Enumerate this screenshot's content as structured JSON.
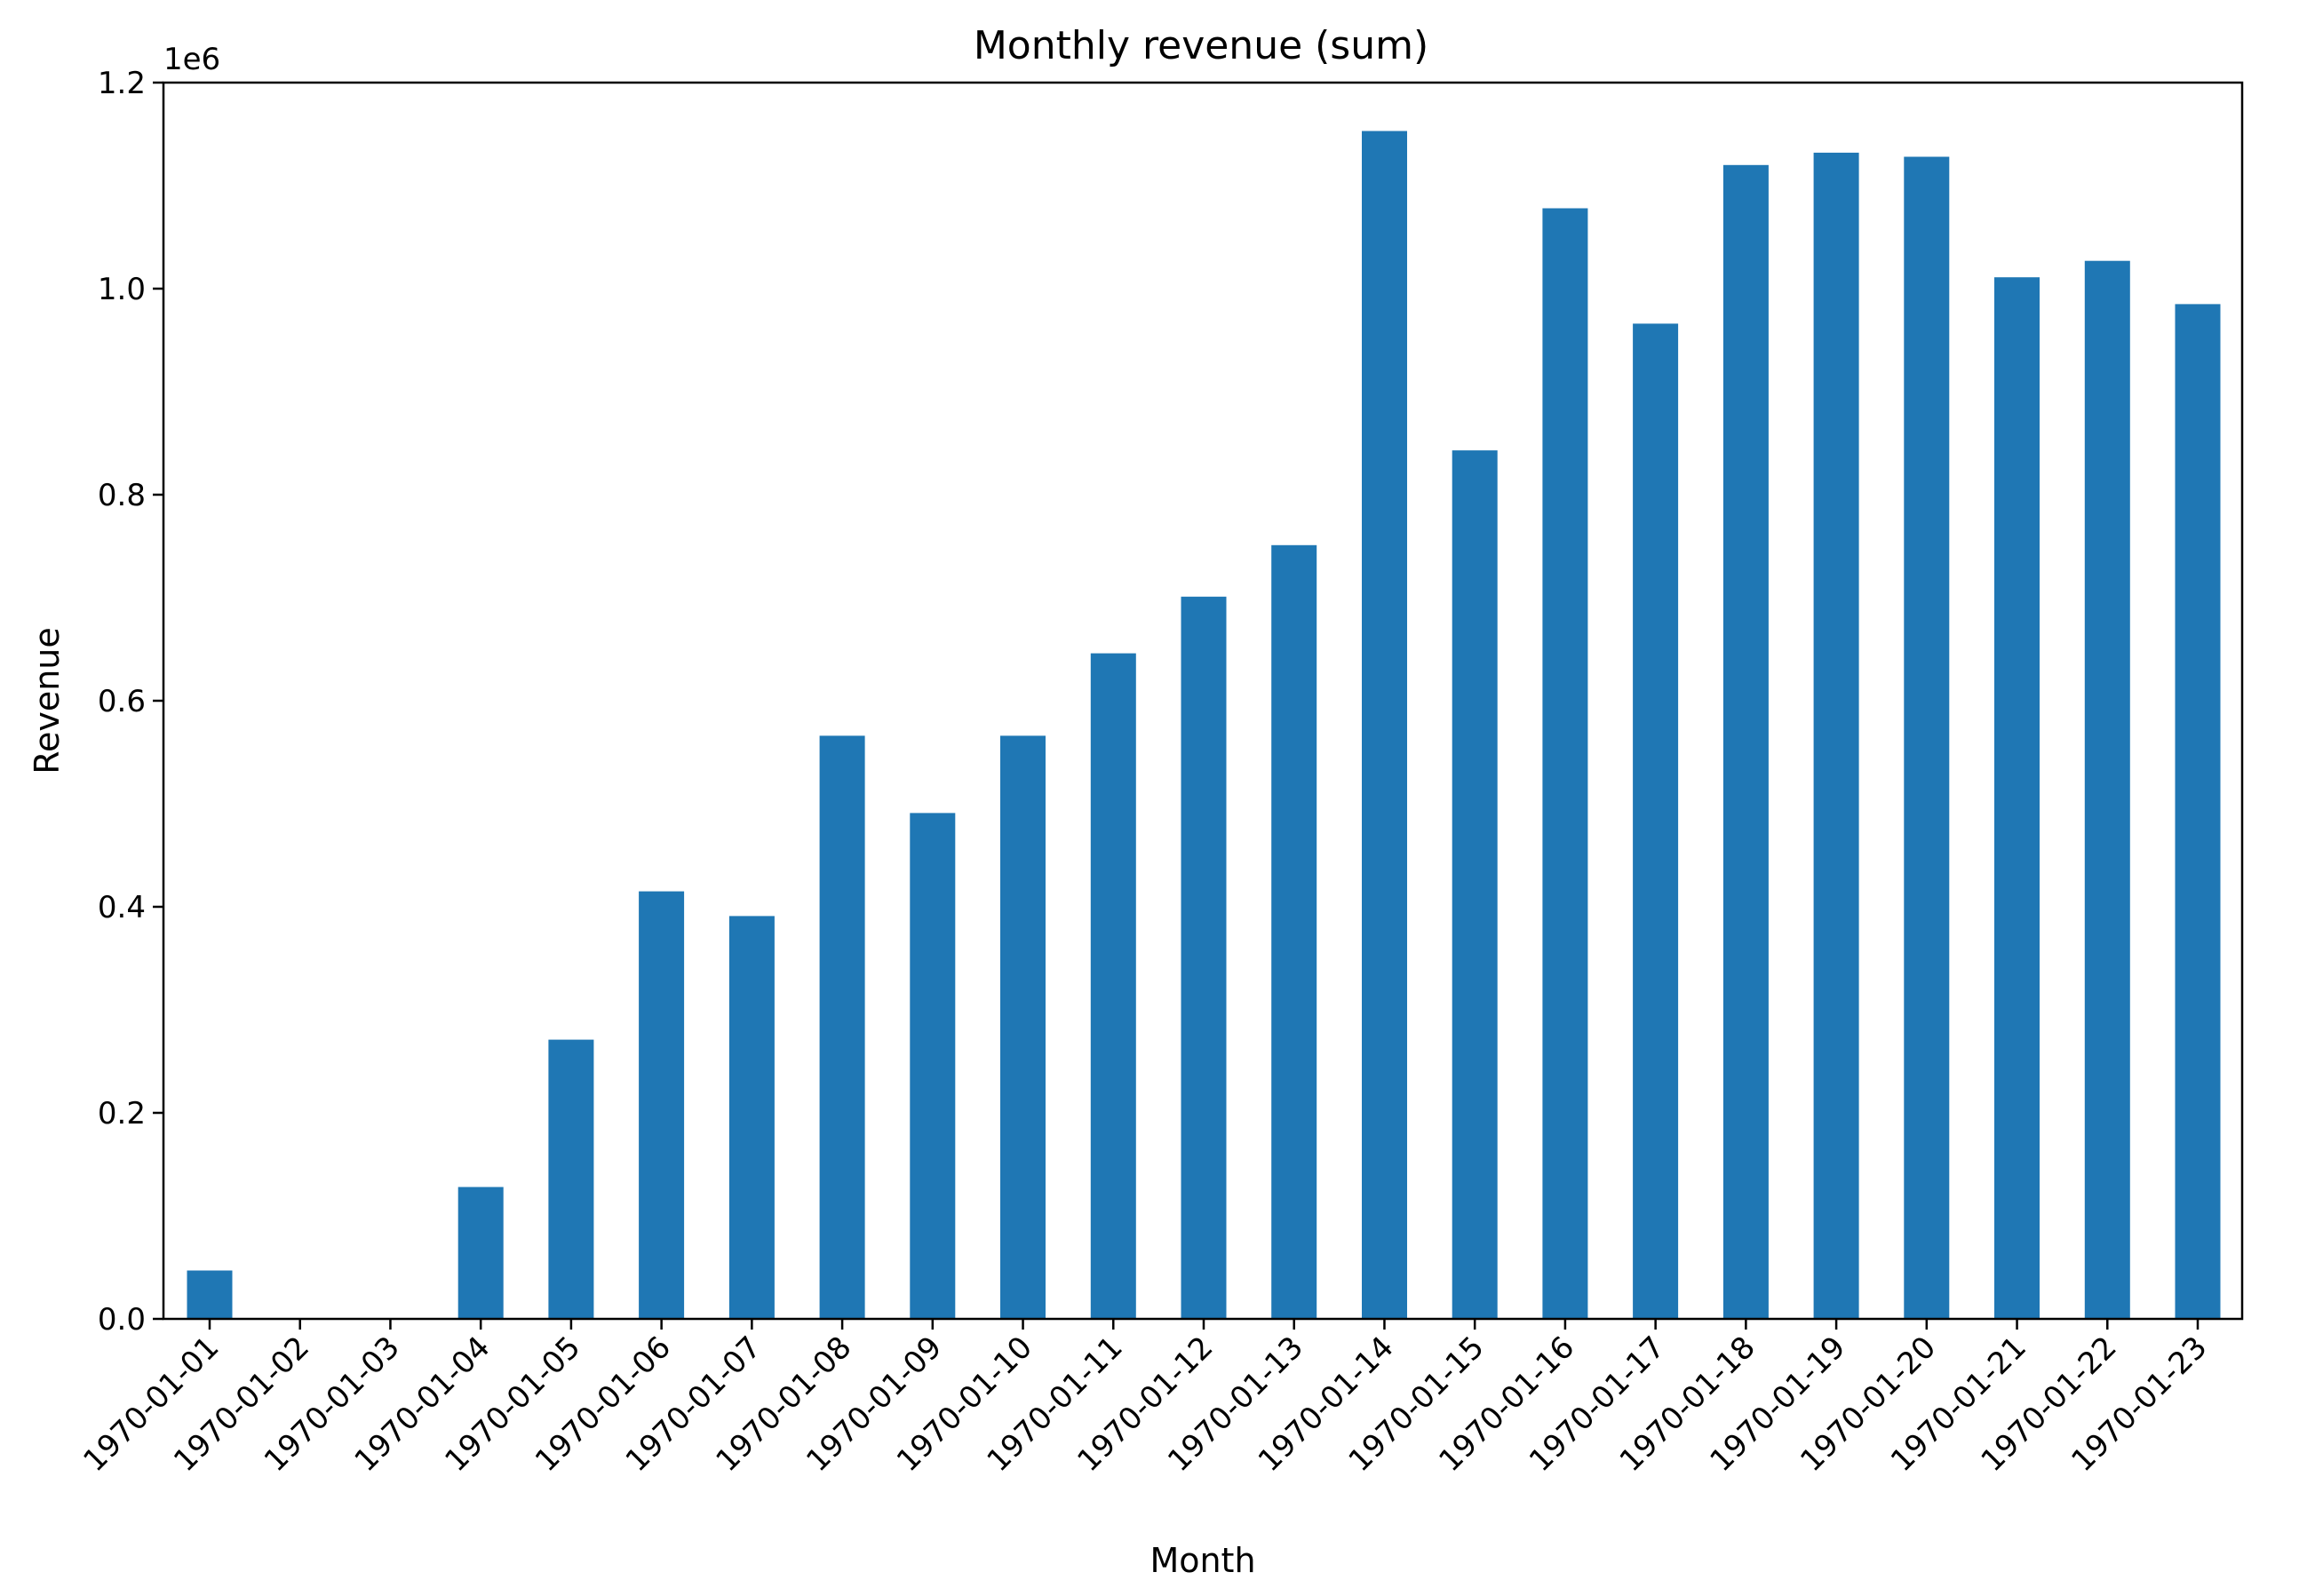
{
  "chart_data": {
    "type": "bar",
    "title": "Monthly revenue (sum)",
    "xlabel": "Month",
    "ylabel": "Revenue",
    "y_offset_text": "1e6",
    "ylim": [
      0,
      1.2
    ],
    "y_ticks": [
      "0.0",
      "0.2",
      "0.4",
      "0.6",
      "0.8",
      "1.0",
      "1.2"
    ],
    "bar_color": "#1f77b4",
    "grid": false,
    "legend": "none",
    "categories": [
      "1970-01-01",
      "1970-01-02",
      "1970-01-03",
      "1970-01-04",
      "1970-01-05",
      "1970-01-06",
      "1970-01-07",
      "1970-01-08",
      "1970-01-09",
      "1970-01-10",
      "1970-01-11",
      "1970-01-12",
      "1970-01-13",
      "1970-01-14",
      "1970-01-15",
      "1970-01-16",
      "1970-01-17",
      "1970-01-18",
      "1970-01-19",
      "1970-01-20",
      "1970-01-21",
      "1970-01-22",
      "1970-01-23"
    ],
    "values": [
      0.047,
      0,
      0,
      0.128,
      0.271,
      0.415,
      0.391,
      0.566,
      0.491,
      0.566,
      0.646,
      0.701,
      0.751,
      1.153,
      0.843,
      1.078,
      0.966,
      1.12,
      1.132,
      1.128,
      1.011,
      1.027,
      0.985
    ]
  }
}
